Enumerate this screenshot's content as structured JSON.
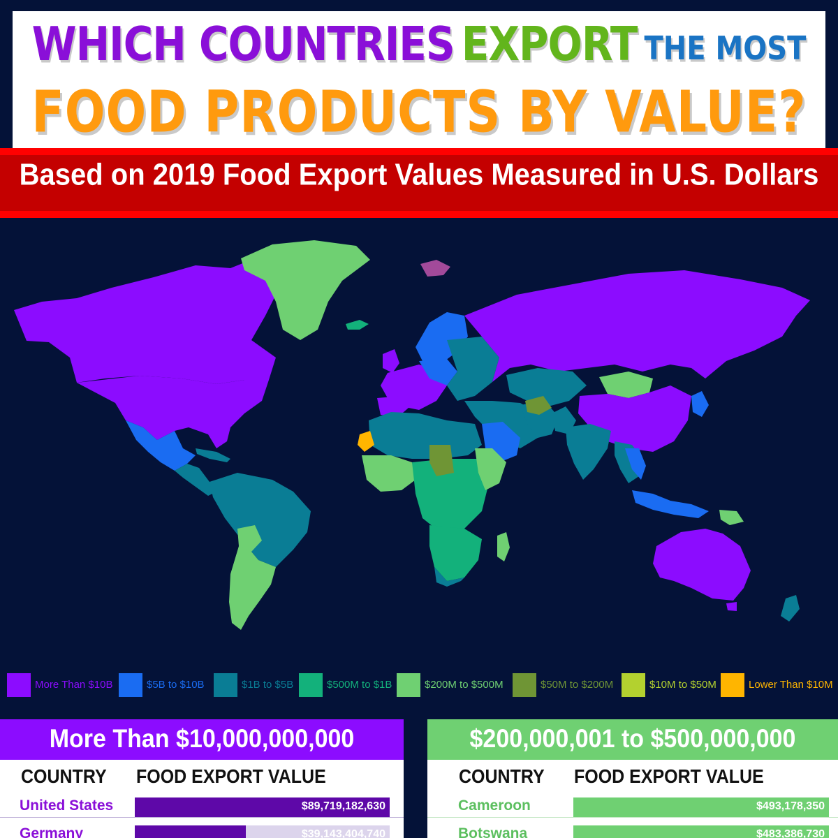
{
  "title": {
    "line1_word1": "WHICH COUNTRIES",
    "line1_word2": "EXPORT",
    "line1_word3": "THE MOST",
    "line2": "FOOD PRODUCTS BY VALUE?"
  },
  "subtitle": "Based on 2019 Food Export Values Measured in U.S. Dollars",
  "colors": {
    "background": "#041238",
    "gt10b": "#8c0cff",
    "b5to10": "#1a6cf2",
    "b1to5": "#0a7d95",
    "m500to1b": "#13b17b",
    "m200to500": "#6fd072",
    "m50to200": "#6f9535",
    "m10to50": "#b3d12f",
    "lt10m": "#ffb500"
  },
  "legend": [
    {
      "label": "More Than $10B",
      "color": "#8c0cff"
    },
    {
      "label": "$5B to $10B",
      "color": "#1a6cf2"
    },
    {
      "label": "$1B to $5B",
      "color": "#0a7d95"
    },
    {
      "label": "$500M to $1B",
      "color": "#13b17b"
    },
    {
      "label": "$200M to $500M",
      "color": "#6fd072"
    },
    {
      "label": "$50M to $200M",
      "color": "#6f9535"
    },
    {
      "label": "$10M to $50M",
      "color": "#b3d12f"
    },
    {
      "label": "Lower Than $10M",
      "color": "#ffb500"
    }
  ],
  "panels": {
    "left": {
      "title": "More Than $10,000,000,000",
      "header_color": "#8c0cff",
      "bar_color": "#5e08a8",
      "bar_bg": "#dcd4ec",
      "name_color": "#8a0fd8",
      "col_country": "COUNTRY",
      "col_value": "FOOD EXPORT VALUE",
      "rows": [
        {
          "country": "United States",
          "value": "$89,719,182,630",
          "amount": 89719182630
        },
        {
          "country": "Germany",
          "value": "$39,143,404,740",
          "amount": 39143404740
        }
      ]
    },
    "right": {
      "title": "$200,000,001 to $500,000,000",
      "header_color": "#6fd072",
      "bar_color": "#6fd072",
      "bar_bg": "#d9f3d9",
      "name_color": "#5cbf5f",
      "col_country": "COUNTRY",
      "col_value": "FOOD EXPORT VALUE",
      "rows": [
        {
          "country": "Cameroon",
          "value": "$493,178,350",
          "amount": 493178350
        },
        {
          "country": "Botswana",
          "value": "$483,386,730",
          "amount": 483386730
        }
      ]
    }
  }
}
